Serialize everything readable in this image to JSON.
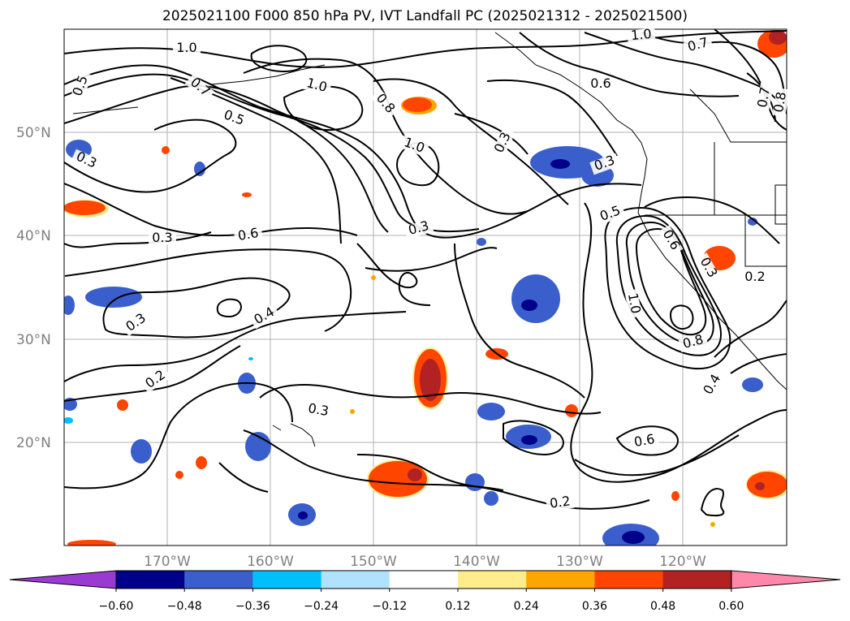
{
  "title": "2025021100 F000 850 hPa PV, IVT Landfall PC (2025021312 - 2025021500)",
  "lat_labels": [
    "50°N",
    "40°N",
    "30°N",
    "20°N"
  ],
  "lon_labels": [
    "170°W",
    "160°W",
    "150°W",
    "140°W",
    "130°W",
    "120°W"
  ],
  "colorbar": {
    "tick_labels": [
      "−0.60",
      "−0.48",
      "−0.36",
      "−0.24",
      "−0.12",
      "0.12",
      "0.24",
      "0.36",
      "0.48",
      "0.60"
    ],
    "colors": [
      "#9a3ad2",
      "#00008b",
      "#3a5fcd",
      "#00bfff",
      "#b0e2ff",
      "#ffffff",
      "#ffec8b",
      "#ffa500",
      "#ff4500",
      "#b22222",
      "#ff88aa"
    ]
  },
  "contour_labels": [
    "1.0",
    "0.5",
    "0.7",
    "1.0",
    "0.5",
    "0.8",
    "0.3",
    "1.0",
    "0.3",
    "0.3",
    "0.6",
    "0.3",
    "0.4",
    "0.3",
    "0.2",
    "0.3",
    "0.5",
    "0.6",
    "0.3",
    "1.0",
    "0.8",
    "0.4",
    "0.6",
    "0.2",
    "0.2",
    "1.0",
    "0.7",
    "0.6",
    "0.3",
    "0.7",
    "0.8"
  ],
  "map": {
    "lat_range": [
      10,
      60
    ],
    "lon_range": [
      -180,
      -110
    ]
  }
}
